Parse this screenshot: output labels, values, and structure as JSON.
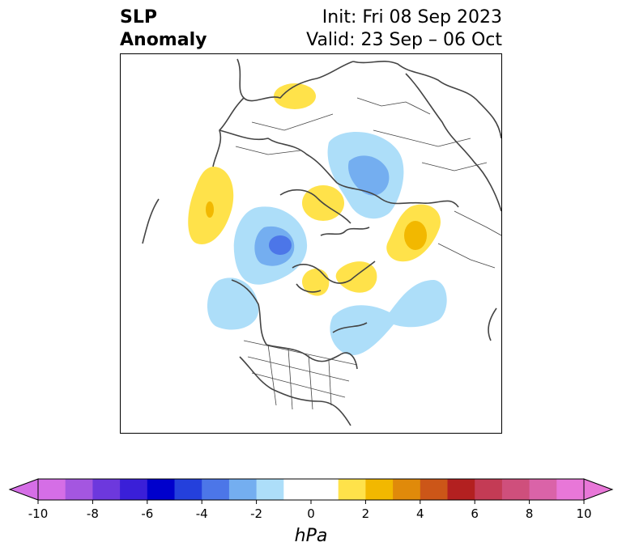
{
  "title": {
    "left_line1": "SLP",
    "left_line2": "Anomaly",
    "right_line1": "Init: Fri 08 Sep 2023",
    "right_line2": "Valid: 23 Sep – 06 Oct"
  },
  "colorbar": {
    "unit": "hPa",
    "ticks": [
      "-10",
      "-8",
      "-6",
      "-4",
      "-2",
      "0",
      "2",
      "4",
      "6",
      "8",
      "10"
    ],
    "colors": [
      "#d56ee6",
      "#a456e0",
      "#6d38dd",
      "#3a1fd8",
      "#0000cc",
      "#2440dc",
      "#4c76e8",
      "#74aef0",
      "#addef9",
      "#ffffff",
      "#ffffff",
      "#ffe24a",
      "#f2b800",
      "#e08a0a",
      "#cc5618",
      "#b32020",
      "#c43b55",
      "#cf4f7c",
      "#da63a8",
      "#e877d8"
    ]
  },
  "map": {
    "colors": {
      "light_blue": "#addef9",
      "mid_blue": "#74aef0",
      "blue": "#4c76e8",
      "yellow": "#ffe24a",
      "dark_yellow": "#f2b800",
      "coast": "#444444"
    }
  }
}
